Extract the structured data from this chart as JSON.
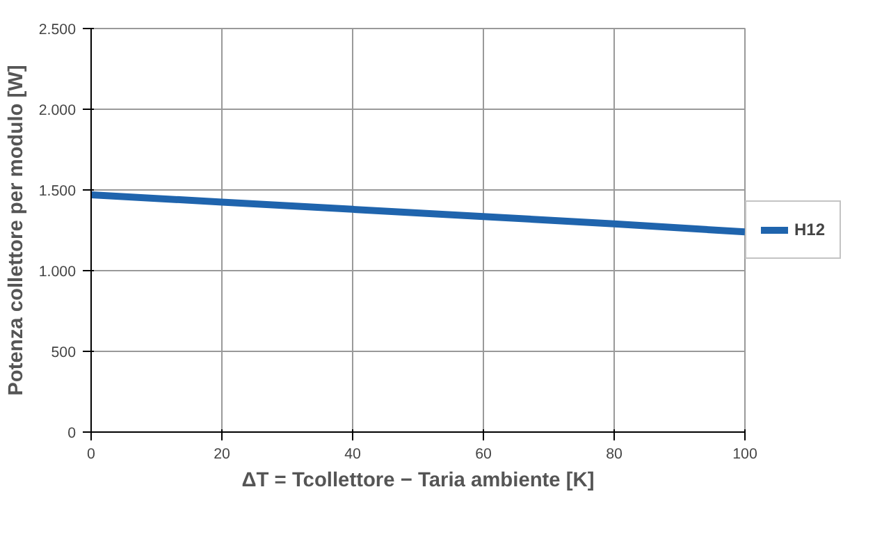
{
  "chart_data": {
    "type": "line",
    "xlabel": "ΔT = Tcollettore − Taria ambiente [K]",
    "ylabel": "Potenza collettore per modulo [W]",
    "x": [
      0,
      20,
      40,
      60,
      80,
      100
    ],
    "series": [
      {
        "name": "H12",
        "color": "#1f64ad",
        "values": [
          1470,
          1425,
          1380,
          1335,
          1290,
          1240
        ]
      }
    ],
    "xlim": [
      0,
      100
    ],
    "xticks": [
      0,
      20,
      40,
      60,
      80,
      100
    ],
    "ylim": [
      0,
      2500
    ],
    "yticks": [
      0,
      {
        "value": 500,
        "label": "500"
      },
      {
        "value": 1000,
        "label": "1.000"
      },
      {
        "value": 1500,
        "label": "1.500"
      },
      {
        "value": 2000,
        "label": "2.000"
      },
      {
        "value": 2500,
        "label": "2.500"
      }
    ],
    "grid": true,
    "legend": "right",
    "marker": "none",
    "line_style": "solid"
  }
}
